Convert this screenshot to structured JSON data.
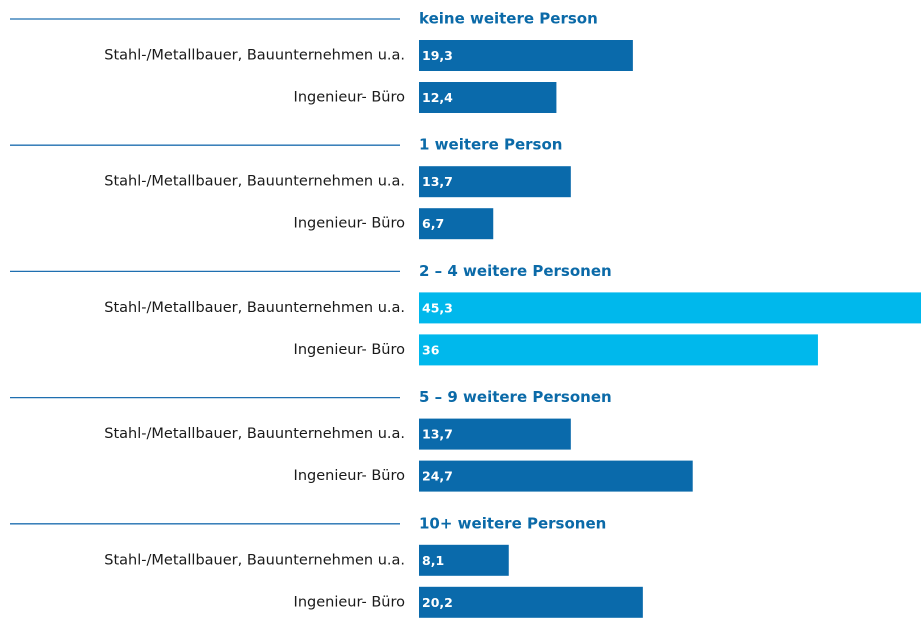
{
  "chart_data": {
    "type": "bar",
    "categories": [
      "Stahl-/Metallbauer, Bauunternehmen u.a.",
      "Ingenieur- Büro"
    ],
    "series": [
      {
        "name": "keine weitere Person",
        "color": "#0a6aab",
        "values": [
          19.3,
          12.4
        ],
        "value_labels": [
          "19,3",
          "12,4"
        ]
      },
      {
        "name": "1 weitere Person",
        "color": "#0a6aab",
        "values": [
          13.7,
          6.7
        ],
        "value_labels": [
          "13,7",
          "6,7"
        ]
      },
      {
        "name": "2 – 4 weitere Personen",
        "color": "#00b8ec",
        "values": [
          45.3,
          36
        ],
        "value_labels": [
          "45,3",
          "36"
        ]
      },
      {
        "name": "5 – 9 weitere Personen",
        "color": "#0a6aab",
        "values": [
          13.7,
          24.7
        ],
        "value_labels": [
          "13,7",
          "24,7"
        ]
      },
      {
        "name": "10+ weitere Personen",
        "color": "#0a6aab",
        "values": [
          8.1,
          20.2
        ],
        "value_labels": [
          "8,1",
          "20,2"
        ]
      }
    ]
  }
}
